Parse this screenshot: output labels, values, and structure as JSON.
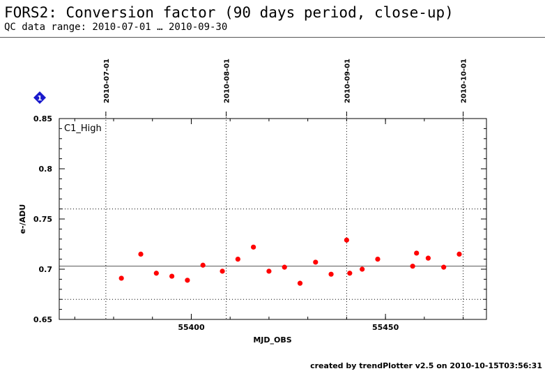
{
  "header": {
    "title": "FORS2: Conversion factor (90 days period, close-up)",
    "subtitle": "QC data range: 2010-07-01 … 2010-09-30"
  },
  "badge": {
    "label": "1",
    "color": "#1a1acc"
  },
  "footer": {
    "text": "created by trendPlotter v2.5 on 2010-10-15T03:56:31"
  },
  "chart_data": {
    "type": "scatter",
    "title": "",
    "panel_label": "C1_High",
    "xlabel": "MJD_OBS",
    "ylabel": "e-/ADU",
    "xlim": [
      55366,
      55476
    ],
    "ylim": [
      0.65,
      0.85
    ],
    "x_ticks": [
      55400,
      55450
    ],
    "y_ticks": [
      0.65,
      0.7,
      0.75,
      0.8,
      0.85
    ],
    "x_tick_labels": [
      "55400",
      "55450"
    ],
    "y_tick_labels": [
      "0.65",
      "0.7",
      "0.75",
      "0.8",
      "0.85"
    ],
    "date_axis": {
      "ticks": [
        {
          "x": 55378,
          "label": "2010-07-01"
        },
        {
          "x": 55409,
          "label": "2010-08-01"
        },
        {
          "x": 55440,
          "label": "2010-09-01"
        },
        {
          "x": 55470,
          "label": "2010-10-01"
        }
      ]
    },
    "reference_lines": {
      "mean": 0.703,
      "upper_limit": 0.76,
      "lower_limit": 0.67
    },
    "grid": false,
    "point_color": "#ff0000",
    "series": [
      {
        "x": [
          55382,
          55387,
          55391,
          55395,
          55399,
          55403,
          55408,
          55412,
          55416,
          55420,
          55424,
          55428,
          55432,
          55436,
          55440,
          55440.8,
          55444,
          55448,
          55457,
          55458,
          55461,
          55465,
          55469
        ],
        "y": [
          0.691,
          0.715,
          0.696,
          0.693,
          0.689,
          0.704,
          0.698,
          0.71,
          0.722,
          0.698,
          0.702,
          0.686,
          0.707,
          0.695,
          0.729,
          0.696,
          0.7,
          0.71,
          0.703,
          0.716,
          0.711,
          0.702,
          0.715
        ]
      }
    ]
  }
}
